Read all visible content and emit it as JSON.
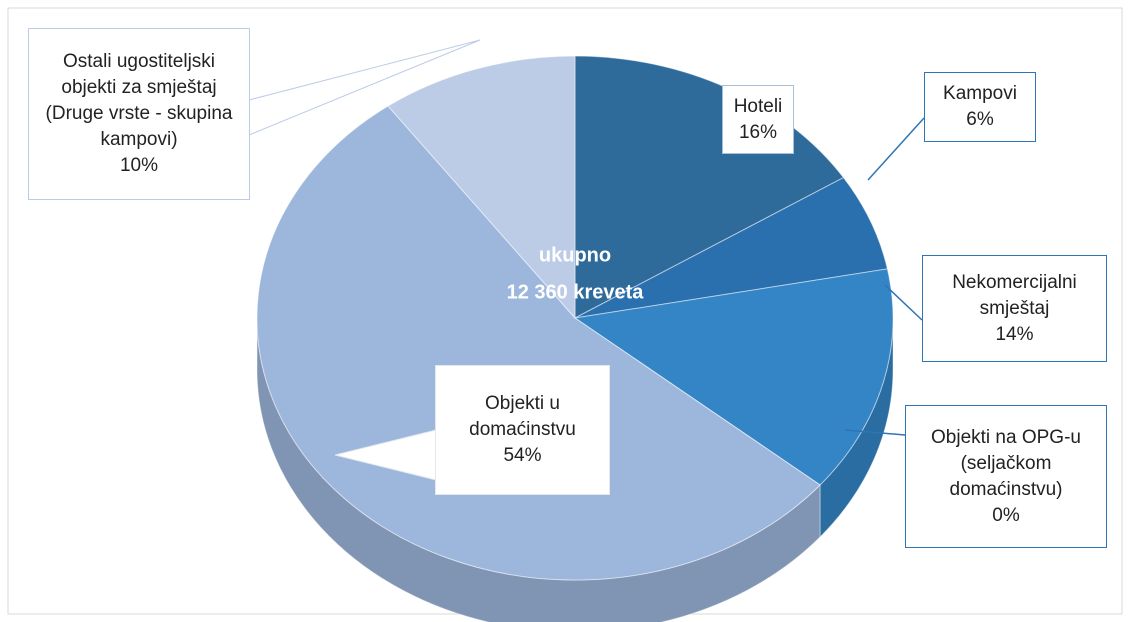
{
  "chart_data": {
    "type": "pie3d",
    "categories": [
      "Hoteli",
      "Kampovi",
      "Nekomercijalni smještaj",
      "Objekti na OPG-u (seljačkom domaćinstvu)",
      "Objekti u domaćinstvu",
      "Ostali ugostiteljski objekti za smještaj (Druge vrste - skupina kampovi)"
    ],
    "values": [
      16,
      6,
      14,
      0,
      54,
      10
    ],
    "value_labels": [
      "16%",
      "6%",
      "14%",
      "0%",
      "54%",
      "10%"
    ],
    "colors": [
      "#2e6a9a",
      "#2a6fae",
      "#3385c6",
      "#5b8fc9",
      "#9cb6dc",
      "#bccce6"
    ],
    "center_label": [
      "ukupno",
      "12 360 kreveta"
    ]
  }
}
